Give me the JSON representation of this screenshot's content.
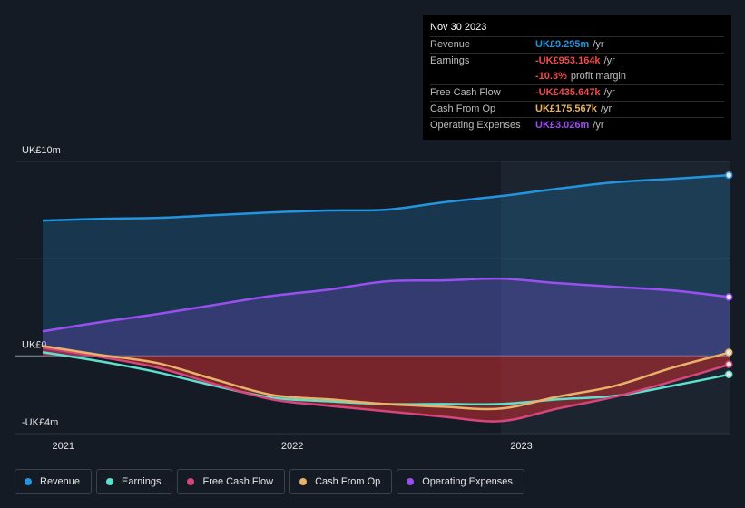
{
  "chart_data": {
    "type": "line",
    "x": [
      2020.91,
      2021.16,
      2021.41,
      2021.66,
      2021.91,
      2022.16,
      2022.41,
      2022.66,
      2022.91,
      2023.16,
      2023.41,
      2023.66,
      2023.91
    ],
    "series": [
      {
        "name": "Revenue",
        "color": "#2394df",
        "values": [
          6.96,
          7.05,
          7.1,
          7.24,
          7.38,
          7.48,
          7.52,
          7.9,
          8.22,
          8.6,
          8.93,
          9.11,
          9.295
        ]
      },
      {
        "name": "Earnings",
        "color": "#5fe0cf",
        "values": [
          0.19,
          -0.28,
          -0.84,
          -1.54,
          -2.15,
          -2.34,
          -2.48,
          -2.48,
          -2.48,
          -2.24,
          -2.06,
          -1.54,
          -0.953164
        ]
      },
      {
        "name": "Free Cash Flow",
        "color": "#d6457c",
        "values": [
          0.42,
          -0.05,
          -0.6,
          -1.45,
          -2.24,
          -2.57,
          -2.85,
          -3.13,
          -3.36,
          -2.71,
          -2.1,
          -1.31,
          -0.435647
        ]
      },
      {
        "name": "Cash From Op",
        "color": "#e8b26a",
        "values": [
          0.51,
          0.05,
          -0.37,
          -1.21,
          -2.01,
          -2.24,
          -2.48,
          -2.62,
          -2.71,
          -2.1,
          -1.54,
          -0.61,
          0.175567
        ]
      },
      {
        "name": "Operating Expenses",
        "color": "#9a4ff0",
        "values": [
          1.26,
          1.73,
          2.15,
          2.62,
          3.08,
          3.41,
          3.83,
          3.88,
          3.97,
          3.74,
          3.55,
          3.36,
          3.026
        ]
      }
    ],
    "xlim": [
      2020.787,
      2023.913
    ],
    "xticks": [
      2021,
      2022,
      2023
    ],
    "ylim": [
      -4,
      10
    ],
    "yticks": [
      {
        "value": 10,
        "label": "UK£10m"
      },
      {
        "value": 5,
        "label": null
      },
      {
        "value": 0,
        "label": "UK£0"
      },
      {
        "value": -4,
        "label": "-UK£4m"
      }
    ],
    "grid": true,
    "tooltip": {
      "date": "Nov 30 2023",
      "rows": [
        {
          "label": "Revenue",
          "value": "UK£9.295m",
          "unit": "/yr"
        },
        {
          "label": "Earnings",
          "value": "-UK£953.164k",
          "unit": "/yr"
        },
        {
          "label": "Free Cash Flow",
          "value": "-UK£435.647k",
          "unit": "/yr"
        },
        {
          "label": "Cash From Op",
          "value": "UK£175.567k",
          "unit": "/yr"
        },
        {
          "label": "Operating Expenses",
          "value": "UK£3.026m",
          "unit": "/yr"
        }
      ],
      "margin": {
        "value": "-10.3%",
        "label": "profit margin"
      }
    }
  }
}
